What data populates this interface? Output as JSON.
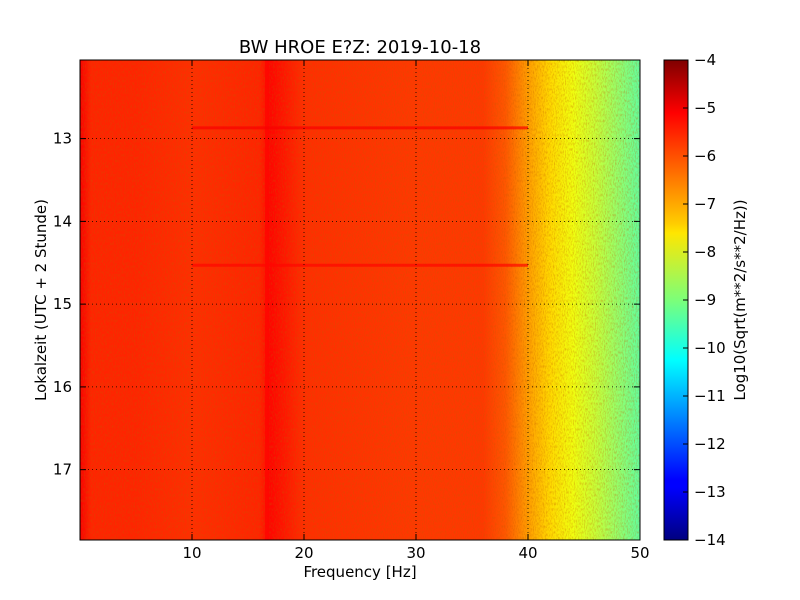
{
  "chart_data": {
    "type": "heatmap",
    "title": "BW HROE E?Z: 2019-10-18",
    "xlabel": "Frequency [Hz]",
    "ylabel": "Lokalzeit (UTC + 2 Stunde)",
    "xlim": [
      0,
      50
    ],
    "ylim": [
      12.05,
      17.85
    ],
    "x_ticks": [
      10,
      20,
      30,
      40,
      50
    ],
    "y_ticks": [
      13,
      14,
      15,
      16,
      17
    ],
    "grid": true,
    "colorbar": {
      "label": "Log10(Sqrt(m**2/s**2/Hz))",
      "range": [
        -14,
        -4
      ],
      "ticks": [
        -4,
        -5,
        -6,
        -7,
        -8,
        -9,
        -10,
        -11,
        -12,
        -13,
        -14
      ],
      "colormap": "jet"
    },
    "spectrum_profile": {
      "frequency_hz": [
        0,
        1,
        5,
        10,
        16,
        17,
        20,
        30,
        36,
        38,
        40,
        42,
        44,
        46,
        48,
        50
      ],
      "level": [
        -5.2,
        -5.6,
        -5.6,
        -5.7,
        -5.6,
        -5.3,
        -5.7,
        -5.8,
        -5.8,
        -6.1,
        -6.8,
        -7.4,
        -7.9,
        -8.3,
        -8.8,
        -9.3
      ]
    },
    "line_features": [
      {
        "kind": "frequency",
        "value_hz": 16.7,
        "level": -5.3
      },
      {
        "kind": "time",
        "value_h": 12.87,
        "level": -5.2
      },
      {
        "kind": "time",
        "value_h": 14.53,
        "level": -5.3
      }
    ]
  }
}
